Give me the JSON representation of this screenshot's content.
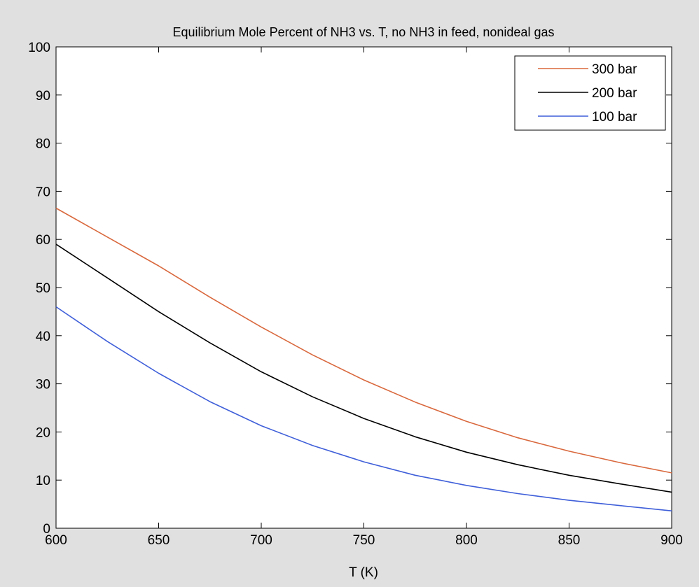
{
  "window": {
    "background": "#e0e0e0"
  },
  "chart_data": {
    "type": "line",
    "title": "Equilibrium Mole Percent of NH3 vs. T, no NH3 in feed, nonideal gas",
    "xlabel": "T (K)",
    "ylabel": "",
    "xlim": [
      600,
      900
    ],
    "ylim": [
      0,
      100
    ],
    "xticks": [
      600,
      650,
      700,
      750,
      800,
      850,
      900
    ],
    "yticks": [
      0,
      10,
      20,
      30,
      40,
      50,
      60,
      70,
      80,
      90,
      100
    ],
    "grid": false,
    "legend_position": "top-right",
    "x": [
      600,
      625,
      650,
      675,
      700,
      725,
      750,
      775,
      800,
      825,
      850,
      875,
      900
    ],
    "series": [
      {
        "name": "300 bar",
        "color": "#d9683d",
        "values": [
          66.5,
          60.5,
          54.5,
          48.0,
          41.8,
          36.0,
          30.8,
          26.2,
          22.2,
          18.8,
          16.0,
          13.6,
          11.5
        ]
      },
      {
        "name": "200 bar",
        "color": "#000000",
        "values": [
          59.0,
          52.0,
          45.0,
          38.5,
          32.5,
          27.3,
          22.8,
          19.0,
          15.8,
          13.2,
          11.0,
          9.2,
          7.5
        ]
      },
      {
        "name": "100 bar",
        "color": "#3f5fd9",
        "values": [
          46.0,
          38.8,
          32.2,
          26.3,
          21.3,
          17.2,
          13.8,
          11.0,
          8.9,
          7.2,
          5.8,
          4.7,
          3.6
        ]
      }
    ]
  }
}
